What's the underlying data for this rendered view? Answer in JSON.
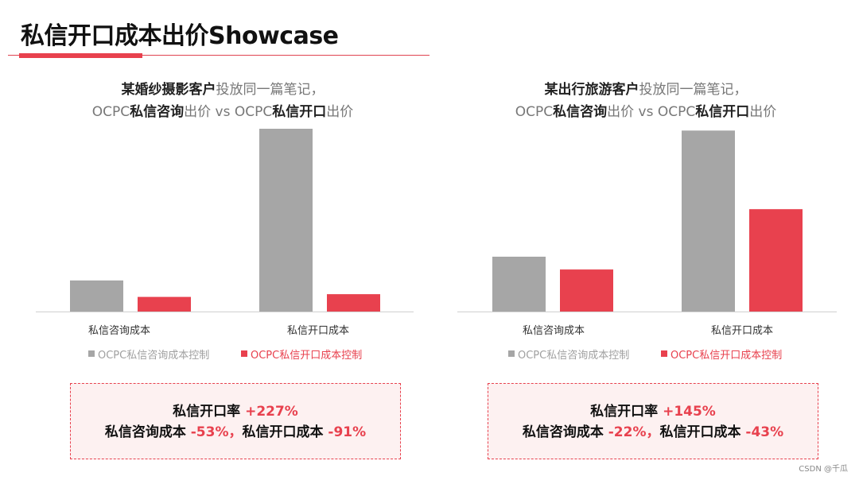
{
  "page": {
    "title": "私信开口成本出价Showcase",
    "watermark": "CSDN @千瓜"
  },
  "colors": {
    "gray": "#a6a6a6",
    "red": "#e8414e",
    "axis": "#d0d0d0",
    "summary_bg": "#fdf1f1"
  },
  "legend": {
    "gray_label": "OCPC私信咨询成本控制",
    "red_label": "OCPC私信开口成本控制"
  },
  "panels": [
    {
      "subtitle_line1": {
        "a": "某婚纱摄影客户",
        "b": "投放同一篇笔记，"
      },
      "subtitle_line2": {
        "a": "OCPC",
        "b": "私信咨询",
        "c": "出价 vs OCPC",
        "d": "私信开口",
        "e": "出价"
      },
      "categories": [
        "私信咨询成本",
        "私信开口成本"
      ],
      "summary": {
        "line1_label": "私信开口率",
        "line1_value": "+227%",
        "line2_label_a": "私信咨询成本",
        "line2_value_a": "-53%，",
        "line2_label_b": "私信开口成本",
        "line2_value_b": "-91%"
      }
    },
    {
      "subtitle_line1": {
        "a": "某出行旅游客户",
        "b": "投放同一篇笔记，"
      },
      "subtitle_line2": {
        "a": "OCPC",
        "b": "私信咨询",
        "c": "出价 vs OCPC",
        "d": "私信开口",
        "e": "出价"
      },
      "categories": [
        "私信咨询成本",
        "私信开口成本"
      ],
      "summary": {
        "line1_label": "私信开口率",
        "line1_value": "+145%",
        "line2_label_a": "私信咨询成本",
        "line2_value_a": "-22%，",
        "line2_label_b": "私信开口成本",
        "line2_value_b": "-43%"
      }
    }
  ],
  "chart_data": [
    {
      "type": "bar",
      "categories": [
        "私信咨询成本",
        "私信开口成本"
      ],
      "series": [
        {
          "name": "OCPC私信咨询成本控制",
          "values": [
            17,
            100
          ]
        },
        {
          "name": "OCPC私信开口成本控制",
          "values": [
            8,
            9.5
          ]
        }
      ],
      "ylim": [
        0,
        100
      ]
    },
    {
      "type": "bar",
      "categories": [
        "私信咨询成本",
        "私信开口成本"
      ],
      "series": [
        {
          "name": "OCPC私信咨询成本控制",
          "values": [
            30,
            99
          ]
        },
        {
          "name": "OCPC私信开口成本控制",
          "values": [
            23,
            56
          ]
        }
      ],
      "ylim": [
        0,
        100
      ]
    }
  ]
}
